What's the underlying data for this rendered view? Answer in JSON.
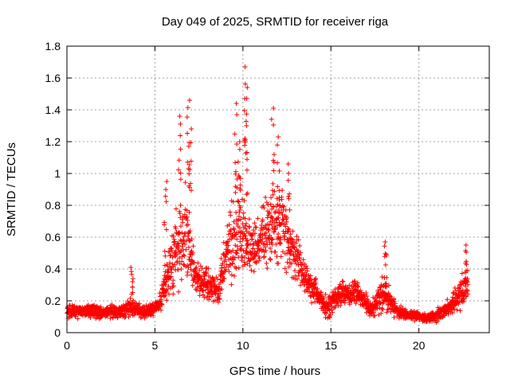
{
  "chart_data": {
    "type": "scatter",
    "title": "Day 049 of 2025, SRMTID for receiver riga",
    "xlabel": "GPS time / hours",
    "ylabel": "SRMTID / TECUs",
    "xlim": [
      0,
      24
    ],
    "ylim": [
      0,
      1.8
    ],
    "x_ticks": [
      0,
      5,
      10,
      15,
      20
    ],
    "x_tick_labels": [
      "0",
      "5",
      "10",
      "15",
      "20"
    ],
    "y_ticks": [
      0,
      0.2,
      0.4,
      0.6,
      0.8,
      1,
      1.2,
      1.4,
      1.6,
      1.8
    ],
    "y_tick_labels": [
      "0",
      "0.2",
      "0.4",
      "0.6",
      "0.8",
      "1",
      "1.2",
      "1.4",
      "1.6",
      "1.8"
    ],
    "grid": true,
    "marker": "plus",
    "marker_color": "#ff0000",
    "series": [
      {
        "name": "SRMTID",
        "envelope": [
          {
            "x": 0.0,
            "mean": 0.13,
            "spread": 0.06
          },
          {
            "x": 1.0,
            "mean": 0.14,
            "spread": 0.06
          },
          {
            "x": 2.0,
            "mean": 0.13,
            "spread": 0.06
          },
          {
            "x": 3.0,
            "mean": 0.13,
            "spread": 0.06
          },
          {
            "x": 3.7,
            "mean": 0.16,
            "spread": 0.08
          },
          {
            "x": 4.5,
            "mean": 0.13,
            "spread": 0.05
          },
          {
            "x": 5.2,
            "mean": 0.17,
            "spread": 0.07
          },
          {
            "x": 5.7,
            "mean": 0.35,
            "spread": 0.2
          },
          {
            "x": 6.3,
            "mean": 0.55,
            "spread": 0.35
          },
          {
            "x": 6.8,
            "mean": 0.6,
            "spread": 0.4
          },
          {
            "x": 7.3,
            "mean": 0.35,
            "spread": 0.15
          },
          {
            "x": 8.0,
            "mean": 0.3,
            "spread": 0.15
          },
          {
            "x": 8.6,
            "mean": 0.25,
            "spread": 0.12
          },
          {
            "x": 9.2,
            "mean": 0.55,
            "spread": 0.3
          },
          {
            "x": 9.8,
            "mean": 0.65,
            "spread": 0.45
          },
          {
            "x": 10.3,
            "mean": 0.55,
            "spread": 0.3
          },
          {
            "x": 10.9,
            "mean": 0.55,
            "spread": 0.25
          },
          {
            "x": 11.6,
            "mean": 0.7,
            "spread": 0.35
          },
          {
            "x": 12.3,
            "mean": 0.65,
            "spread": 0.35
          },
          {
            "x": 12.8,
            "mean": 0.5,
            "spread": 0.25
          },
          {
            "x": 13.5,
            "mean": 0.35,
            "spread": 0.15
          },
          {
            "x": 14.2,
            "mean": 0.25,
            "spread": 0.1
          },
          {
            "x": 14.8,
            "mean": 0.15,
            "spread": 0.1
          },
          {
            "x": 15.5,
            "mean": 0.25,
            "spread": 0.1
          },
          {
            "x": 16.5,
            "mean": 0.25,
            "spread": 0.1
          },
          {
            "x": 17.3,
            "mean": 0.15,
            "spread": 0.07
          },
          {
            "x": 18.0,
            "mean": 0.25,
            "spread": 0.15
          },
          {
            "x": 18.8,
            "mean": 0.13,
            "spread": 0.05
          },
          {
            "x": 19.8,
            "mean": 0.1,
            "spread": 0.04
          },
          {
            "x": 20.8,
            "mean": 0.1,
            "spread": 0.05
          },
          {
            "x": 21.8,
            "mean": 0.16,
            "spread": 0.07
          },
          {
            "x": 22.7,
            "mean": 0.3,
            "spread": 0.15
          }
        ],
        "peaks": [
          {
            "x": 5.6,
            "y": 0.95
          },
          {
            "x": 6.4,
            "y": 1.36
          },
          {
            "x": 6.9,
            "y": 1.46
          },
          {
            "x": 7.0,
            "y": 1.28
          },
          {
            "x": 9.6,
            "y": 1.44
          },
          {
            "x": 9.8,
            "y": 1.2
          },
          {
            "x": 10.1,
            "y": 1.67
          },
          {
            "x": 10.2,
            "y": 1.54
          },
          {
            "x": 11.7,
            "y": 1.41
          },
          {
            "x": 12.0,
            "y": 1.23
          },
          {
            "x": 12.6,
            "y": 1.06
          },
          {
            "x": 18.1,
            "y": 0.57
          },
          {
            "x": 22.7,
            "y": 0.55
          },
          {
            "x": 3.7,
            "y": 0.41
          }
        ]
      }
    ]
  }
}
